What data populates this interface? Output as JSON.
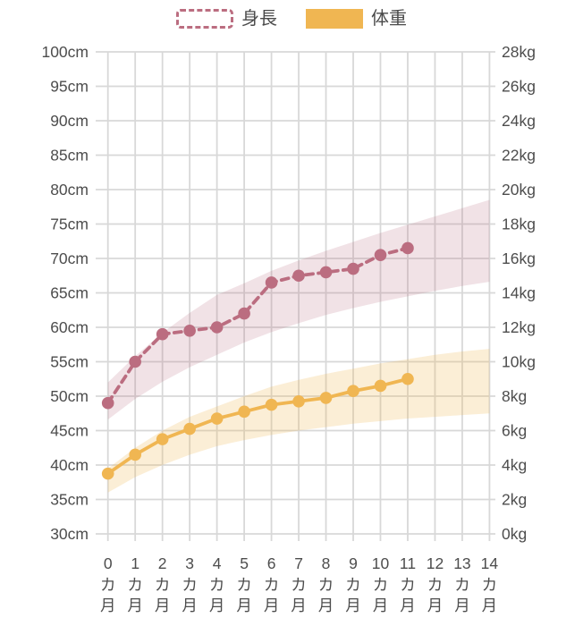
{
  "legend": {
    "items": [
      {
        "label": "身長",
        "swatch": "dashed",
        "color": "#bb6d80"
      },
      {
        "label": "体重",
        "swatch": "filled",
        "color": "#f0b652"
      }
    ]
  },
  "colors": {
    "height_series": "#bb6d80",
    "weight_series": "#f0b652",
    "height_band": "rgba(187,109,128,0.20)",
    "weight_band": "rgba(240,182,82,0.24)",
    "grid": "#d8d8d8",
    "axis_text": "#4d4d4d"
  },
  "chart_data": {
    "type": "line",
    "title": "",
    "xlabel": "",
    "ylabel_left": "cm",
    "ylabel_right": "kg",
    "grid": true,
    "legend_position": "top",
    "x_ticks": [
      0,
      1,
      2,
      3,
      4,
      5,
      6,
      7,
      8,
      9,
      10,
      11,
      12,
      13,
      14
    ],
    "x_tick_suffix_lines": [
      "カ",
      "月"
    ],
    "left_axis": {
      "min": 30,
      "max": 100,
      "step": 5,
      "suffix": "cm"
    },
    "right_axis": {
      "min": 0,
      "max": 28,
      "step": 2,
      "suffix": "kg"
    },
    "series": [
      {
        "key": "height",
        "name": "身長",
        "axis": "left",
        "unit": "cm",
        "style": "dashed",
        "color": "#bb6d80",
        "x": [
          0,
          1,
          2,
          3,
          4,
          5,
          6,
          7,
          8,
          9,
          10,
          11
        ],
        "values": [
          49,
          55,
          59,
          59.5,
          60,
          62,
          66.5,
          67.5,
          68,
          68.5,
          70.5,
          71.5
        ]
      },
      {
        "key": "weight",
        "name": "体重",
        "axis": "right",
        "unit": "kg",
        "style": "solid",
        "color": "#f0b652",
        "x": [
          0,
          1,
          2,
          3,
          4,
          5,
          6,
          7,
          8,
          9,
          10,
          11
        ],
        "values": [
          3.5,
          4.6,
          5.5,
          6.1,
          6.7,
          7.1,
          7.5,
          7.7,
          7.9,
          8.3,
          8.6,
          9.0
        ]
      }
    ],
    "bands": [
      {
        "key": "height-band",
        "axis": "left",
        "fill": "rgba(187,109,128,0.20)",
        "x": [
          0,
          1,
          2,
          3,
          4,
          5,
          6,
          7,
          8,
          9,
          10,
          11,
          12,
          13,
          14
        ],
        "top": [
          52,
          55.8,
          59.2,
          62.1,
          64.7,
          66.4,
          68.2,
          69.7,
          71.1,
          72.4,
          73.7,
          74.9,
          76.1,
          77.3,
          78.5
        ],
        "bottom": [
          46.6,
          49.6,
          52.1,
          54.2,
          56.0,
          57.8,
          59.3,
          60.6,
          61.8,
          62.8,
          63.7,
          64.5,
          65.3,
          66.0,
          66.6
        ]
      },
      {
        "key": "weight-band",
        "axis": "right",
        "fill": "rgba(240,182,82,0.24)",
        "x": [
          0,
          1,
          2,
          3,
          4,
          5,
          6,
          7,
          8,
          9,
          10,
          11,
          12,
          13,
          14
        ],
        "top": [
          3.8,
          5.0,
          6.0,
          6.8,
          7.4,
          8.0,
          8.55,
          8.95,
          9.3,
          9.6,
          9.9,
          10.15,
          10.4,
          10.6,
          10.75
        ],
        "bottom": [
          2.4,
          3.3,
          4.0,
          4.6,
          5.1,
          5.45,
          5.75,
          6.0,
          6.2,
          6.4,
          6.55,
          6.7,
          6.8,
          6.9,
          7.0
        ]
      }
    ]
  }
}
